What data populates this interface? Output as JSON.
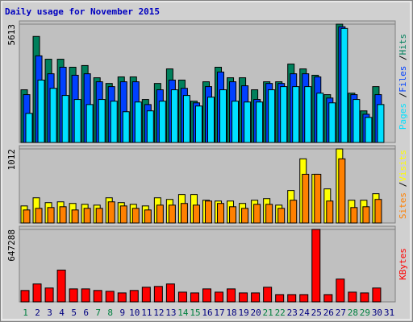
{
  "chart_data": [
    {
      "type": "bar",
      "title": "Daily usage for November 2015",
      "legend_separator": "/",
      "ylim": [
        0,
        5613
      ],
      "yticks": [
        5613
      ],
      "series": [
        {
          "name": "Hits",
          "color": "#00805c",
          "values": [
            2500,
            5030,
            3950,
            3950,
            3570,
            3650,
            3070,
            2800,
            3110,
            3110,
            2040,
            2800,
            3490,
            2960,
            1960,
            2880,
            3570,
            3070,
            3070,
            2500,
            2880,
            2880,
            3720,
            3490,
            3190,
            2270,
            5613,
            2340,
            1500,
            2650,
            0
          ]
        },
        {
          "name": "Files",
          "color": "#0040ff",
          "values": [
            2270,
            4110,
            3260,
            3570,
            3190,
            3260,
            2880,
            2650,
            2880,
            2880,
            1800,
            2500,
            2960,
            2570,
            1880,
            2650,
            3340,
            2880,
            2690,
            2040,
            2800,
            2800,
            3260,
            3260,
            3110,
            2110,
            5490,
            2270,
            1340,
            2270,
            0
          ]
        },
        {
          "name": "Pages",
          "color": "#00e0ff",
          "values": [
            1380,
            2960,
            2570,
            2230,
            2040,
            1800,
            2040,
            1960,
            1460,
            1920,
            1500,
            1960,
            2500,
            2230,
            1730,
            2150,
            2500,
            1960,
            1920,
            1920,
            2500,
            2650,
            2650,
            2650,
            2340,
            1880,
            5410,
            2040,
            1190,
            1800,
            0
          ]
        }
      ]
    },
    {
      "type": "bar",
      "legend_separator": "/",
      "ylim": [
        0,
        1012
      ],
      "yticks": [
        1012
      ],
      "series": [
        {
          "name": "Visits",
          "color": "#ffff00",
          "values": [
            233,
            344,
            278,
            289,
            267,
            255,
            244,
            344,
            278,
            255,
            233,
            344,
            322,
            389,
            389,
            311,
            300,
            300,
            267,
            311,
            333,
            244,
            444,
            877,
            666,
            466,
            1012,
            311,
            311,
            400,
            0
          ]
        },
        {
          "name": "Sites",
          "color": "#ff8000",
          "values": [
            178,
            200,
            211,
            222,
            178,
            200,
            200,
            289,
            233,
            200,
            178,
            244,
            244,
            267,
            244,
            300,
            267,
            222,
            200,
            255,
            255,
            200,
            311,
            666,
            666,
            300,
            877,
            211,
            222,
            322,
            0
          ]
        }
      ]
    },
    {
      "type": "bar",
      "ylim": [
        0,
        647288
      ],
      "yticks": [
        647288
      ],
      "categories": [
        "1",
        "2",
        "3",
        "4",
        "5",
        "6",
        "7",
        "8",
        "9",
        "10",
        "11",
        "12",
        "13",
        "14",
        "15",
        "16",
        "17",
        "18",
        "19",
        "20",
        "21",
        "22",
        "23",
        "24",
        "25",
        "26",
        "27",
        "28",
        "29",
        "30",
        "31"
      ],
      "category_colors": [
        "#008040",
        "#000080",
        "#000080",
        "#000080",
        "#000080",
        "#000080",
        "#008040",
        "#008040",
        "#000080",
        "#000080",
        "#000080",
        "#000080",
        "#000080",
        "#008040",
        "#008040",
        "#000080",
        "#000080",
        "#000080",
        "#000080",
        "#000080",
        "#008040",
        "#008040",
        "#000080",
        "#000080",
        "#000080",
        "#000080",
        "#000080",
        "#008040",
        "#008040",
        "#000080",
        "#000080"
      ],
      "series": [
        {
          "name": "KBytes",
          "color": "#ff0000",
          "values": [
            101822,
            160000,
            124000,
            284000,
            116000,
            116000,
            102000,
            94500,
            80000,
            102000,
            131000,
            138000,
            160000,
            87000,
            80000,
            116000,
            87000,
            116000,
            80000,
            80000,
            131000,
            65000,
            65000,
            65000,
            647288,
            65000,
            204000,
            87000,
            80000,
            124000,
            0
          ]
        }
      ]
    }
  ]
}
